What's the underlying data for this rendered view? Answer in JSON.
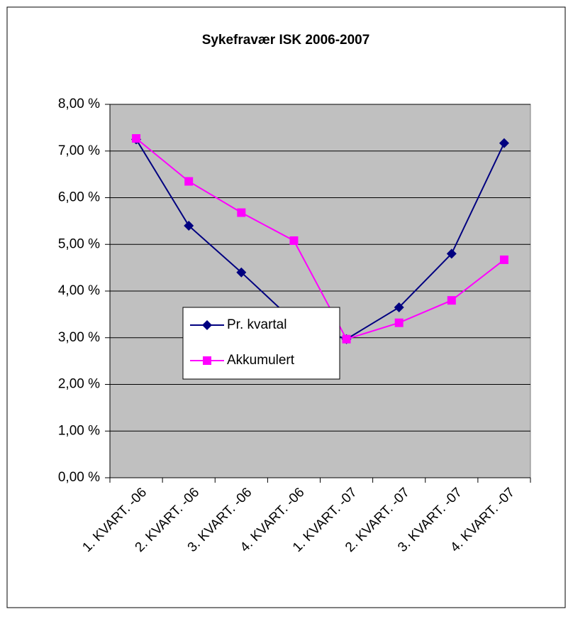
{
  "chart_data": {
    "type": "line",
    "title": "Sykefravær ISK 2006-2007",
    "categories": [
      "1. KVART. -06",
      "2. KVART. -06",
      "3. KVART. -06",
      "4. KVART. -06",
      "1. KVART. -07",
      "2. KVART. -07",
      "3. KVART. -07",
      "4. KVART. -07"
    ],
    "series": [
      {
        "name": "Pr. kvartal",
        "color": "#000080",
        "marker": "diamond",
        "values": [
          7.25,
          5.4,
          4.4,
          3.35,
          2.97,
          3.65,
          4.8,
          7.17
        ]
      },
      {
        "name": "Akkumulert",
        "color": "#ff00ff",
        "marker": "square",
        "values": [
          7.27,
          6.35,
          5.68,
          5.08,
          2.97,
          3.32,
          3.8,
          4.67
        ]
      }
    ],
    "ylim": [
      0,
      8
    ],
    "yticks": [
      {
        "value": 0,
        "label": "0,00 %"
      },
      {
        "value": 1,
        "label": "1,00 %"
      },
      {
        "value": 2,
        "label": "2,00 %"
      },
      {
        "value": 3,
        "label": "3,00 %"
      },
      {
        "value": 4,
        "label": "4,00 %"
      },
      {
        "value": 5,
        "label": "5,00 %"
      },
      {
        "value": 6,
        "label": "6,00 %"
      },
      {
        "value": 7,
        "label": "7,00 %"
      },
      {
        "value": 8,
        "label": "8,00 %"
      }
    ],
    "grid": true,
    "plot_background": "#c0c0c0",
    "legend_position": "center"
  }
}
